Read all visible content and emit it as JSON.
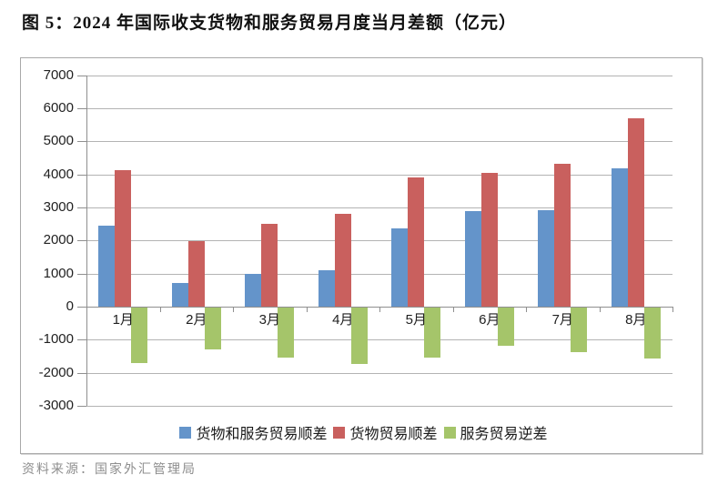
{
  "title": "图 5：2024 年国际收支货物和服务贸易月度当月差额（亿元）",
  "source": "资料来源：国家外汇管理局",
  "chart_data": {
    "type": "bar",
    "title": "图 5：2024 年国际收支货物和服务贸易月度当月差额（亿元）",
    "categories": [
      "1月",
      "2月",
      "3月",
      "4月",
      "5月",
      "6月",
      "7月",
      "8月"
    ],
    "series": [
      {
        "name": "货物和服务贸易顺差",
        "color": "#6494CA",
        "values": [
          2450,
          720,
          1000,
          1100,
          2370,
          2885,
          2930,
          4175
        ]
      },
      {
        "name": "货物贸易顺差",
        "color": "#C9605E",
        "values": [
          4130,
          1980,
          2505,
          2810,
          3895,
          4045,
          4315,
          5710
        ]
      },
      {
        "name": "服务贸易逆差",
        "color": "#A5C56A",
        "values": [
          -1685,
          -1255,
          -1510,
          -1715,
          -1525,
          -1160,
          -1345,
          -1535
        ]
      }
    ],
    "ylim": [
      -3000,
      7000
    ],
    "ytick_step": 1000,
    "yticks": [
      7000,
      6000,
      5000,
      4000,
      3000,
      2000,
      1000,
      0,
      -1000,
      -2000,
      -3000
    ],
    "xlabel": "",
    "ylabel": "",
    "unit": "亿元",
    "grid": true,
    "legend_position": "bottom"
  }
}
